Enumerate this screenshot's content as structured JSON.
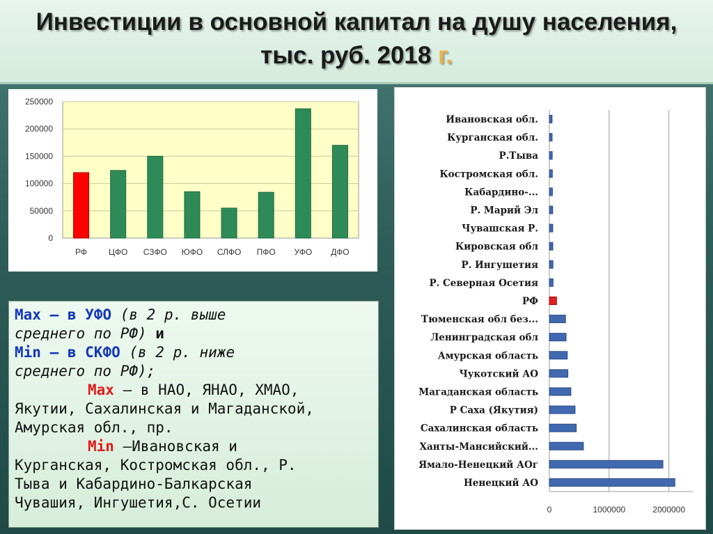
{
  "title": {
    "main": "Инвестиции в основной капитал на душу населения, тыс. руб. 2018",
    "accent": "г."
  },
  "colors": {
    "bar_green": "#2e8b57",
    "bar_red": "#ff0000",
    "hbar_blue": "#4169b0",
    "hbar_red": "#e02020",
    "text_blue": "#1538b8",
    "text_red": "#e01b1b"
  },
  "chart_data": [
    {
      "type": "bar",
      "categories": [
        "РФ",
        "ЦФО",
        "СЗФО",
        "ЮФО",
        "СЛФО",
        "ПФО",
        "УФО",
        "ДФО"
      ],
      "values": [
        120000,
        124000,
        150000,
        85000,
        55000,
        84000,
        237000,
        170000
      ],
      "highlight": "РФ",
      "ylim": [
        0,
        250000
      ],
      "yticks": [
        0,
        50000,
        100000,
        150000,
        200000,
        250000
      ],
      "grid": true,
      "title": "",
      "xlabel": "",
      "ylabel": ""
    },
    {
      "type": "bar",
      "orientation": "horizontal",
      "categories": [
        "Ивановская обл.",
        "Курганская обл.",
        "Р.Тыва",
        "Костромская обл.",
        "Кабардино-...",
        "Р. Марий Эл",
        "Чувашская Р.",
        "Кировская обл",
        "Р. Ингушетия",
        "Р. Северная Осетия",
        "РФ",
        "Тюменская обл без...",
        "Ленинградская обл",
        "Амурская область",
        "Чукотский АО",
        "Магаданская область",
        "Р Саха (Якутия)",
        "Сахалинская область",
        "Ханты-Мансийский...",
        "Ямало-Ненецкий АОг",
        "Ненецкий АО"
      ],
      "values": [
        45000,
        46000,
        48000,
        50000,
        51000,
        55000,
        57000,
        58000,
        60000,
        62000,
        120000,
        270000,
        280000,
        300000,
        310000,
        360000,
        430000,
        450000,
        570000,
        1900000,
        2100000
      ],
      "highlight": "РФ",
      "xlim": [
        0,
        2400000
      ],
      "xticks": [
        0,
        1000000,
        2000000
      ],
      "grid": true,
      "title": "",
      "xlabel": "",
      "ylabel": ""
    }
  ],
  "text_box": {
    "line1_max": "Max",
    "line1_dash": " – в УФО",
    "line1_paren": " (в 2 р. выше",
    "line2_paren": "среднего по РФ)",
    "line2_and": " и",
    "line3_min": "Min",
    "line3_dash": " – в СКФО",
    "line3_paren": " (в 2 р. ниже",
    "line4_paren": "среднего по РФ);",
    "line5_max": "Max",
    "line5_rest": " – в НАО, ЯНАО, ХМАО,",
    "line6": "Якутии, Сахалинская и Магаданской,",
    "line7": "Амурская обл., пр.",
    "line8_min": "Min",
    "line8_rest": " –Ивановская и",
    "line9": "Курганская, Костромская обл., Р.",
    "line10": "Тыва и Кабардино-Балкарская",
    "line11": "Чувашия, Ингушетия,С. Осетии"
  }
}
